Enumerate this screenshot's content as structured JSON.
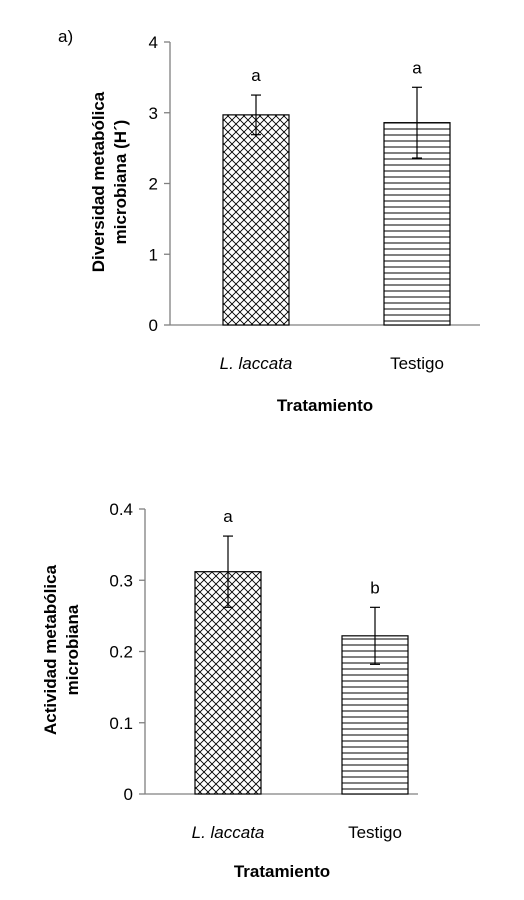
{
  "chart_data": [
    {
      "type": "bar",
      "panel_label": "a)",
      "categories": [
        "L. laccata",
        "Testigo"
      ],
      "values": [
        2.97,
        2.86
      ],
      "error_bars": [
        0.28,
        0.5
      ],
      "significance": [
        "a",
        "a"
      ],
      "patterns": [
        "crosshatch",
        "horizontal"
      ],
      "xlabel": "Tratamiento",
      "ylabel_lines": [
        "Diversidad metabólica",
        "microbiana (H´)"
      ],
      "ylim": [
        0,
        4
      ],
      "yticks": [
        "0",
        "1",
        "2",
        "3",
        "4"
      ],
      "grid": false,
      "legend": "none"
    },
    {
      "type": "bar",
      "panel_label": "",
      "categories": [
        "L. laccata",
        "Testigo"
      ],
      "values": [
        0.312,
        0.222
      ],
      "error_bars": [
        0.05,
        0.04
      ],
      "significance": [
        "a",
        "b"
      ],
      "patterns": [
        "crosshatch",
        "horizontal"
      ],
      "xlabel": "Tratamiento",
      "ylabel_lines": [
        "Actividad metabólica",
        "microbiana"
      ],
      "ylim": [
        0,
        0.4
      ],
      "yticks": [
        "0",
        "0.1",
        "0.2",
        "0.3",
        "0.4"
      ],
      "grid": false,
      "legend": "none"
    }
  ]
}
